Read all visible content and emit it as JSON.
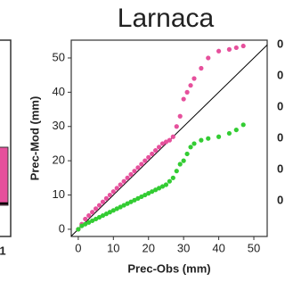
{
  "chart_data": {
    "type": "scatter",
    "title": "Larnaca",
    "x_label": "Prec-Obs (mm)",
    "y_label": "Prec-Mod (mm)",
    "xlim": [
      -2,
      53.8
    ],
    "ylim": [
      -2.1,
      55.2
    ],
    "xticks": [
      0,
      10,
      20,
      30,
      40,
      50
    ],
    "yticks": [
      0,
      10,
      20,
      30,
      40,
      50
    ],
    "series": [
      {
        "color": "#e6509c",
        "x": [
          0,
          1,
          2,
          3,
          4,
          5,
          6,
          7,
          8,
          9,
          10,
          11,
          12,
          13,
          14,
          15,
          16,
          17,
          18,
          19,
          20,
          21,
          22,
          23,
          24,
          25,
          26,
          27,
          28,
          29,
          30,
          31,
          32,
          33,
          35,
          37,
          40,
          43,
          45,
          47
        ],
        "values": [
          0,
          1.5,
          3,
          4,
          5,
          6,
          7,
          8,
          9,
          10,
          11,
          12,
          13,
          14,
          15,
          16,
          17,
          18,
          19,
          20,
          21,
          22,
          23,
          24,
          25,
          25.5,
          26,
          27,
          30,
          33,
          38,
          40,
          42,
          44,
          47,
          50,
          52,
          52.5,
          53,
          53.5
        ]
      },
      {
        "color": "#33cc33",
        "x": [
          0,
          1,
          2,
          3,
          4,
          5,
          6,
          7,
          8,
          9,
          10,
          11,
          12,
          13,
          14,
          15,
          16,
          17,
          18,
          19,
          20,
          21,
          22,
          23,
          24,
          25,
          26,
          27,
          28,
          29,
          30,
          31,
          32,
          33,
          35,
          37,
          40,
          43,
          45,
          47
        ],
        "values": [
          0,
          1,
          1.5,
          2,
          2.5,
          3,
          3.5,
          4,
          4.5,
          5,
          5.5,
          6,
          6.5,
          7,
          7.5,
          8,
          8.5,
          9,
          9.5,
          10,
          10.5,
          11,
          11.5,
          12,
          12.5,
          13,
          14,
          15,
          17,
          19,
          20,
          22,
          24,
          25,
          26,
          26.5,
          27,
          28,
          29,
          30.5
        ]
      }
    ]
  },
  "fragments": {
    "left_panel_label": "1",
    "right_ticks": [
      "0",
      "0",
      "0",
      "0",
      "0",
      "0"
    ]
  }
}
